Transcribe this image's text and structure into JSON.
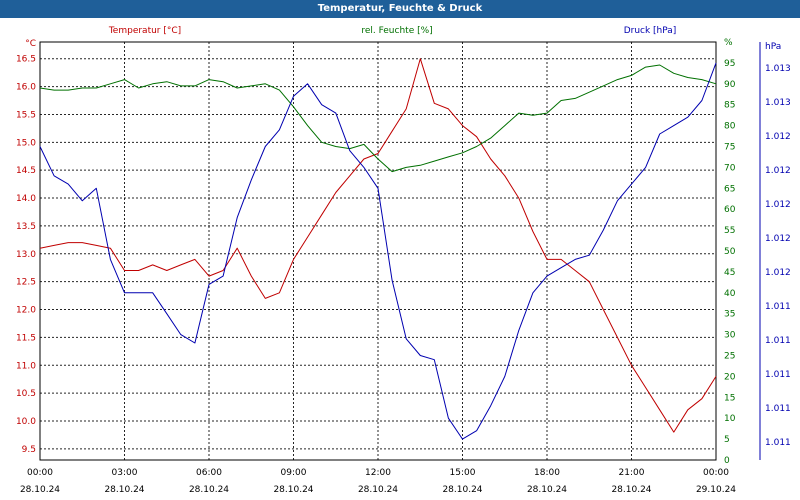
{
  "window": {
    "title": "Temperatur, Feuchte & Druck"
  },
  "colors": {
    "temperature": "#c00000",
    "humidity": "#007000",
    "pressure": "#0000b0",
    "titlebar": "#1f5f99",
    "grid": "#000000"
  },
  "chart_data": {
    "type": "line",
    "title": "Temperatur, Feuchte & Druck",
    "grid": true,
    "x_ticks": [
      {
        "time": "00:00",
        "date": "28.10.24"
      },
      {
        "time": "03:00",
        "date": "28.10.24"
      },
      {
        "time": "06:00",
        "date": "28.10.24"
      },
      {
        "time": "09:00",
        "date": "28.10.24"
      },
      {
        "time": "12:00",
        "date": "28.10.24"
      },
      {
        "time": "15:00",
        "date": "28.10.24"
      },
      {
        "time": "18:00",
        "date": "28.10.24"
      },
      {
        "time": "21:00",
        "date": "28.10.24"
      },
      {
        "time": "00:00",
        "date": "29.10.24"
      }
    ],
    "x_hours": [
      0,
      0.5,
      1,
      1.5,
      2,
      2.5,
      3,
      3.5,
      4,
      4.5,
      5,
      5.5,
      6,
      6.5,
      7,
      7.5,
      8,
      8.5,
      9,
      9.5,
      10,
      10.5,
      11,
      11.5,
      12,
      12.5,
      13,
      13.5,
      14,
      14.5,
      15,
      15.5,
      16,
      16.5,
      17,
      17.5,
      18,
      18.5,
      19,
      19.5,
      20,
      20.5,
      21,
      21.5,
      22,
      22.5,
      23,
      23.5,
      24
    ],
    "axes": {
      "temperature": {
        "unit_label": "°C",
        "ylim": [
          9.3,
          16.8
        ],
        "ticks": [
          "9.5",
          "10.0",
          "10.5",
          "11.0",
          "11.5",
          "12.0",
          "12.5",
          "13.0",
          "13.5",
          "14.0",
          "14.5",
          "15.0",
          "15.5",
          "16.0",
          "16.5"
        ]
      },
      "humidity": {
        "unit_label": "%",
        "ylim": [
          0,
          100
        ],
        "ticks": [
          "0",
          "5",
          "10",
          "15",
          "20",
          "25",
          "30",
          "35",
          "40",
          "45",
          "50",
          "55",
          "60",
          "65",
          "70",
          "75",
          "80",
          "85",
          "90",
          "95",
          "%"
        ]
      },
      "pressure": {
        "unit_label": "hPa",
        "ticks": [
          "1.011",
          "1.011",
          "1.011",
          "1.011",
          "1.011",
          "1.012",
          "1.012",
          "1.012",
          "1.012",
          "1.012",
          "1.013",
          "1.013"
        ]
      }
    },
    "series": [
      {
        "name": "Temperatur [°C]",
        "axis": "temperature",
        "values": [
          13.1,
          13.15,
          13.2,
          13.2,
          13.15,
          13.1,
          12.7,
          12.7,
          12.8,
          12.7,
          12.8,
          12.9,
          12.6,
          12.7,
          13.1,
          12.6,
          12.2,
          12.3,
          12.9,
          13.3,
          13.7,
          14.1,
          14.4,
          14.7,
          14.8,
          15.2,
          15.6,
          16.5,
          15.7,
          15.6,
          15.3,
          15.1,
          14.7,
          14.4,
          14.0,
          13.4,
          12.9,
          12.9,
          12.7,
          12.5,
          12.0,
          11.5,
          11.0,
          10.6,
          10.2,
          9.8,
          10.2,
          10.4,
          10.8
        ]
      },
      {
        "name": "rel. Feuchte [%]",
        "axis": "humidity",
        "values": [
          89,
          88.5,
          88.5,
          89,
          89,
          90,
          91,
          89,
          90,
          90.5,
          89.5,
          89.5,
          91,
          90.5,
          89,
          89.5,
          90,
          88.5,
          84.5,
          80,
          76,
          75,
          74.5,
          75.5,
          72,
          69,
          70,
          70.5,
          71.5,
          72.5,
          73.5,
          75,
          77,
          80,
          83,
          82.5,
          83,
          86,
          86.5,
          88,
          89.5,
          91,
          92,
          94,
          94.5,
          92.5,
          91.5,
          91,
          90
        ]
      },
      {
        "name": "Druck [hPa]",
        "axis": "pressure",
        "values": [
          75,
          68,
          66,
          62,
          65,
          48,
          40,
          40,
          40,
          35,
          30,
          28,
          42,
          44,
          58,
          67,
          75,
          79,
          87,
          90,
          85,
          83,
          74,
          70,
          65,
          43,
          29,
          25,
          24,
          10,
          5,
          7,
          13,
          20,
          31,
          40,
          44,
          46,
          48,
          49,
          55,
          62,
          66,
          70,
          78,
          80,
          82,
          86,
          95
        ]
      }
    ]
  }
}
